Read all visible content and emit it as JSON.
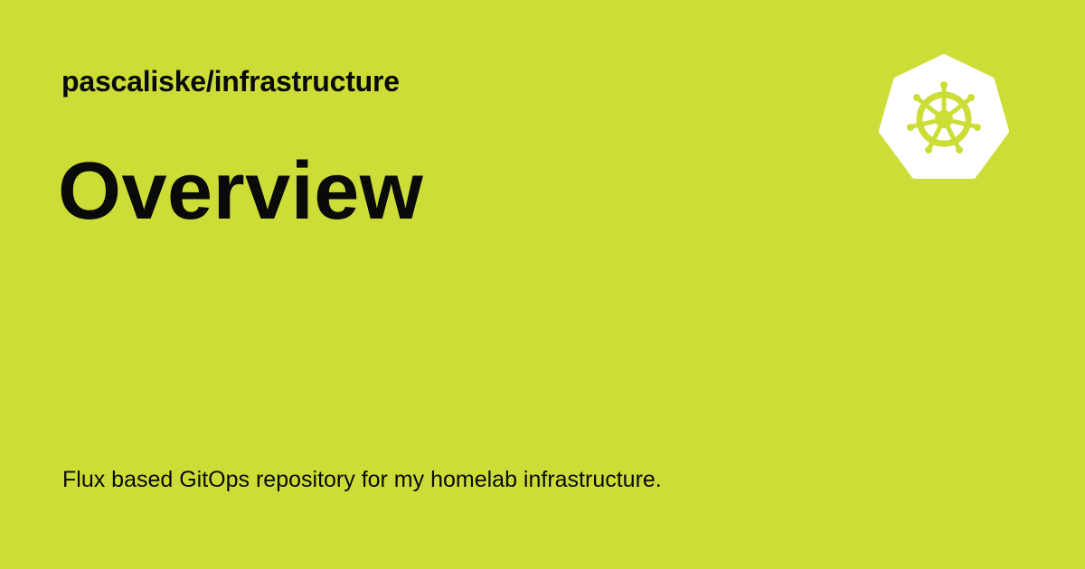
{
  "card": {
    "repository": "pascaliske/infrastructure",
    "title": "Overview",
    "description": "Flux based GitOps repository for my homelab infrastructure.",
    "logo_icon": "kubernetes-helm-icon",
    "background_color": "#cddd37",
    "logo_color": "#ffffff"
  }
}
